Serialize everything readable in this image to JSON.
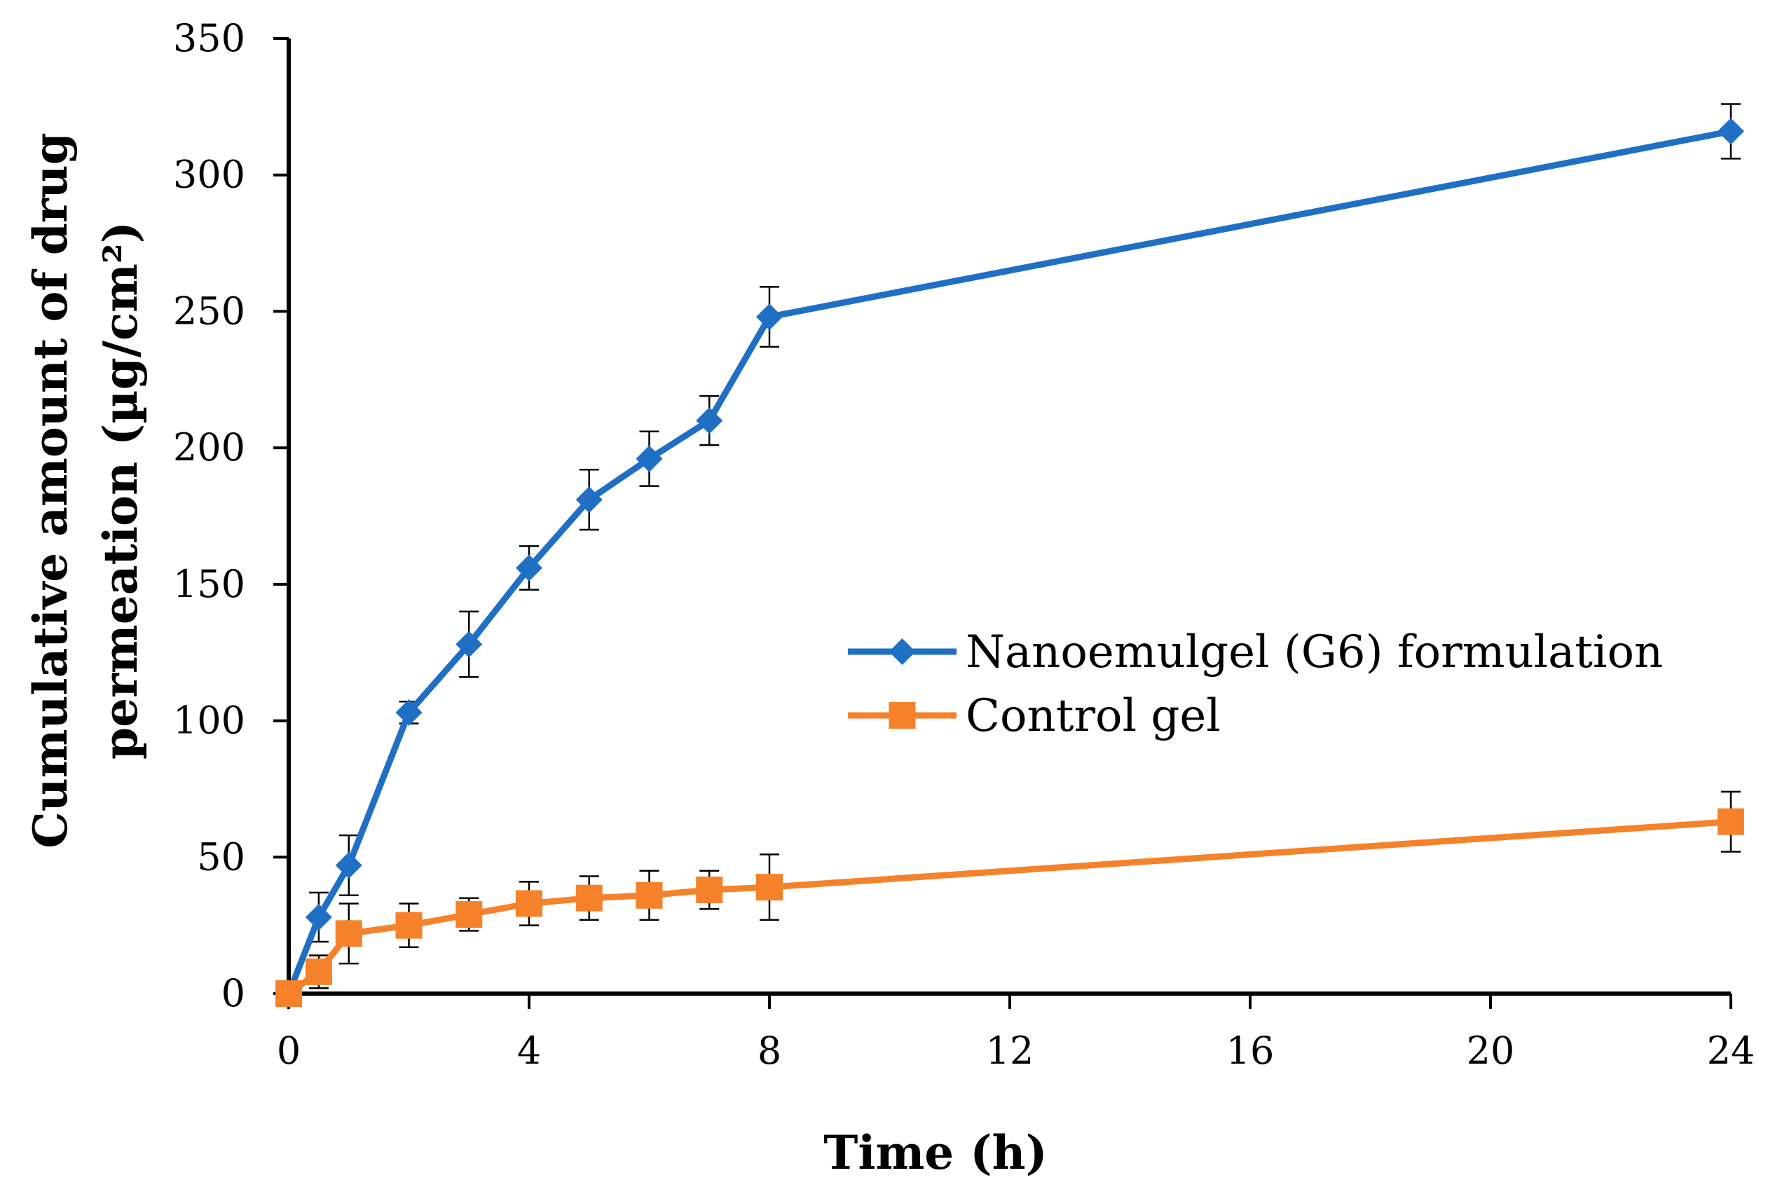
{
  "chart_data": {
    "type": "line",
    "title": "",
    "xlabel": "Time (h)",
    "ylabel_lines": [
      "Cumulative amount of drug",
      "permeation (µg/cm²)"
    ],
    "xlim": [
      0,
      24
    ],
    "ylim": [
      0,
      350
    ],
    "x_ticks": [
      0,
      4,
      8,
      12,
      16,
      20,
      24
    ],
    "y_ticks": [
      0,
      50,
      100,
      150,
      200,
      250,
      300,
      350
    ],
    "x_tick_labels": [
      "0",
      "4",
      "8",
      "12",
      "16",
      "20",
      "24"
    ],
    "y_tick_labels": [
      "0",
      "50",
      "100",
      "150",
      "200",
      "250",
      "300",
      "350"
    ],
    "grid": false,
    "legend_position": "center-right",
    "series": [
      {
        "name": "Nanoemulgel (G6) formulation",
        "color": "#1f6fc5",
        "marker": "diamond",
        "x": [
          0,
          0.5,
          1,
          2,
          3,
          4,
          5,
          6,
          7,
          8,
          24
        ],
        "y": [
          0,
          28,
          47,
          103,
          128,
          156,
          181,
          196,
          210,
          248,
          316
        ],
        "error": [
          0,
          9,
          11,
          4,
          12,
          8,
          11,
          10,
          9,
          11,
          10
        ]
      },
      {
        "name": "Control gel",
        "color": "#f5822a",
        "marker": "square",
        "x": [
          0,
          0.5,
          1,
          2,
          3,
          4,
          5,
          6,
          7,
          8,
          24
        ],
        "y": [
          0,
          8,
          22,
          25,
          29,
          33,
          35,
          36,
          38,
          39,
          63
        ],
        "error": [
          0,
          6,
          11,
          8,
          6,
          8,
          8,
          9,
          7,
          12,
          11
        ]
      }
    ]
  }
}
